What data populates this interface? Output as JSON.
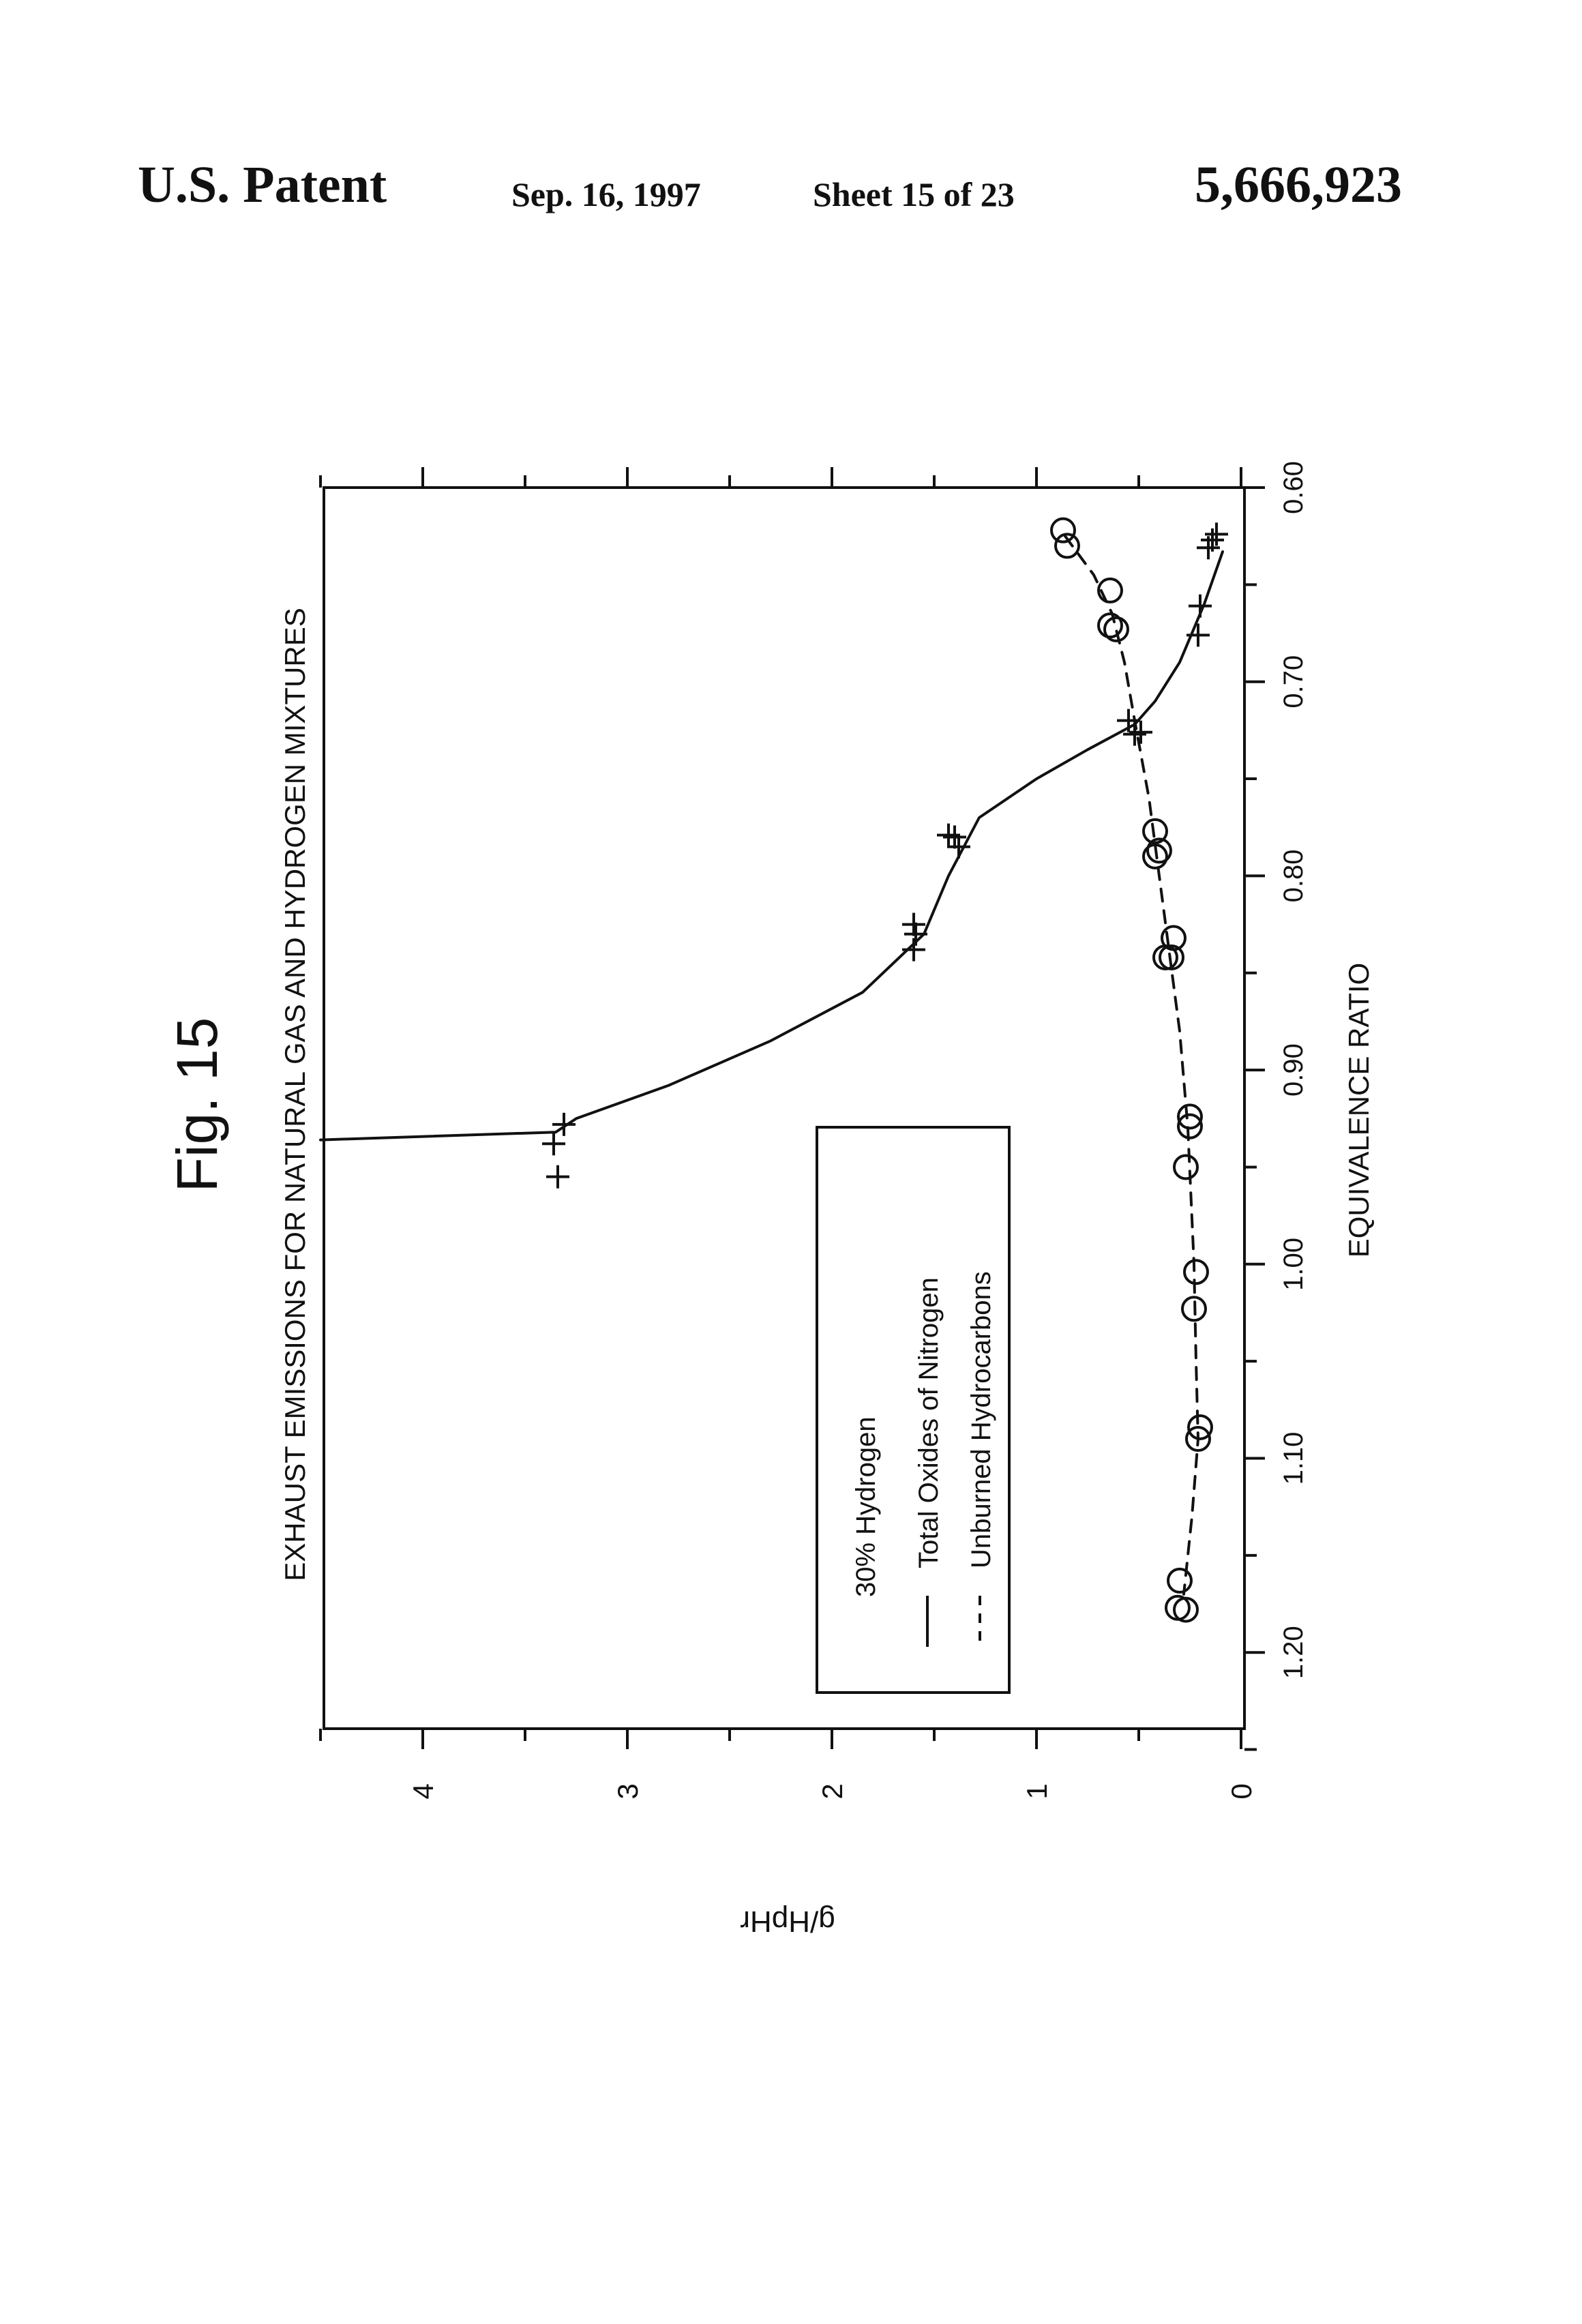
{
  "header": {
    "patent_label": "U.S. Patent",
    "date": "Sep. 16, 1997",
    "sheet": "Sheet 15 of 23",
    "patent_number": "5,666,923"
  },
  "chart_data": {
    "type": "scatter",
    "figure_label": "Fig. 15",
    "title": "EXHAUST EMISSIONS FOR NATURAL GAS AND HYDROGEN MIXTURES",
    "xlabel": "EQUIVALENCE RATIO",
    "ylabel": "g/HpHr",
    "xlim": [
      0.6,
      1.25
    ],
    "ylim": [
      0,
      4.5
    ],
    "x_axis_reversed": true,
    "x_ticks": [
      "0.60",
      "0.70",
      "0.80",
      "0.90",
      "1.00",
      "1.10",
      "1.20"
    ],
    "y_ticks": [
      "0",
      "1",
      "2",
      "3",
      "4"
    ],
    "legend": {
      "title": "30% Hydrogen",
      "entries": [
        "Total Oxides of Nitrogen",
        "Unburned Hydrocarbons"
      ]
    },
    "series": [
      {
        "name": "Total Oxides of Nitrogen",
        "marker": "plus",
        "line": "solid",
        "points": [
          [
            0.938,
            3.36
          ],
          [
            0.928,
            3.31
          ],
          [
            0.955,
            3.34
          ],
          [
            0.83,
            1.59
          ],
          [
            0.838,
            1.6
          ],
          [
            0.825,
            1.6
          ],
          [
            0.78,
            1.4
          ],
          [
            0.785,
            1.38
          ],
          [
            0.779,
            1.43
          ],
          [
            0.72,
            0.55
          ],
          [
            0.727,
            0.52
          ],
          [
            0.726,
            0.49
          ],
          [
            0.676,
            0.21
          ],
          [
            0.661,
            0.2
          ],
          [
            0.627,
            0.14
          ],
          [
            0.631,
            0.16
          ],
          [
            0.624,
            0.12
          ]
        ],
        "curve": [
          [
            0.633,
            0.09
          ],
          [
            0.66,
            0.18
          ],
          [
            0.69,
            0.3
          ],
          [
            0.71,
            0.42
          ],
          [
            0.722,
            0.52
          ],
          [
            0.735,
            0.75
          ],
          [
            0.75,
            1.0
          ],
          [
            0.77,
            1.28
          ],
          [
            0.8,
            1.43
          ],
          [
            0.83,
            1.55
          ],
          [
            0.86,
            1.85
          ],
          [
            0.885,
            2.3
          ],
          [
            0.908,
            2.8
          ],
          [
            0.925,
            3.25
          ],
          [
            0.932,
            3.35
          ],
          [
            0.936,
            4.5
          ]
        ]
      },
      {
        "name": "Unburned Hydrocarbons",
        "marker": "circle",
        "line": "dashed",
        "points": [
          [
            0.622,
            0.87
          ],
          [
            0.63,
            0.85
          ],
          [
            0.653,
            0.64
          ],
          [
            0.671,
            0.64
          ],
          [
            0.673,
            0.61
          ],
          [
            0.777,
            0.42
          ],
          [
            0.787,
            0.4
          ],
          [
            0.79,
            0.42
          ],
          [
            0.832,
            0.33
          ],
          [
            0.842,
            0.34
          ],
          [
            0.842,
            0.37
          ],
          [
            0.924,
            0.25
          ],
          [
            0.929,
            0.25
          ],
          [
            0.95,
            0.27
          ],
          [
            1.004,
            0.22
          ],
          [
            1.023,
            0.23
          ],
          [
            1.084,
            0.2
          ],
          [
            1.09,
            0.21
          ],
          [
            1.163,
            0.3
          ],
          [
            1.178,
            0.27
          ],
          [
            1.177,
            0.31
          ]
        ],
        "curve": [
          [
            0.625,
            0.86
          ],
          [
            0.645,
            0.72
          ],
          [
            0.665,
            0.63
          ],
          [
            0.69,
            0.57
          ],
          [
            0.72,
            0.52
          ],
          [
            0.76,
            0.45
          ],
          [
            0.8,
            0.4
          ],
          [
            0.84,
            0.35
          ],
          [
            0.88,
            0.3
          ],
          [
            0.93,
            0.26
          ],
          [
            1.0,
            0.23
          ],
          [
            1.05,
            0.22
          ],
          [
            1.09,
            0.21
          ],
          [
            1.13,
            0.24
          ],
          [
            1.17,
            0.28
          ]
        ]
      }
    ]
  }
}
